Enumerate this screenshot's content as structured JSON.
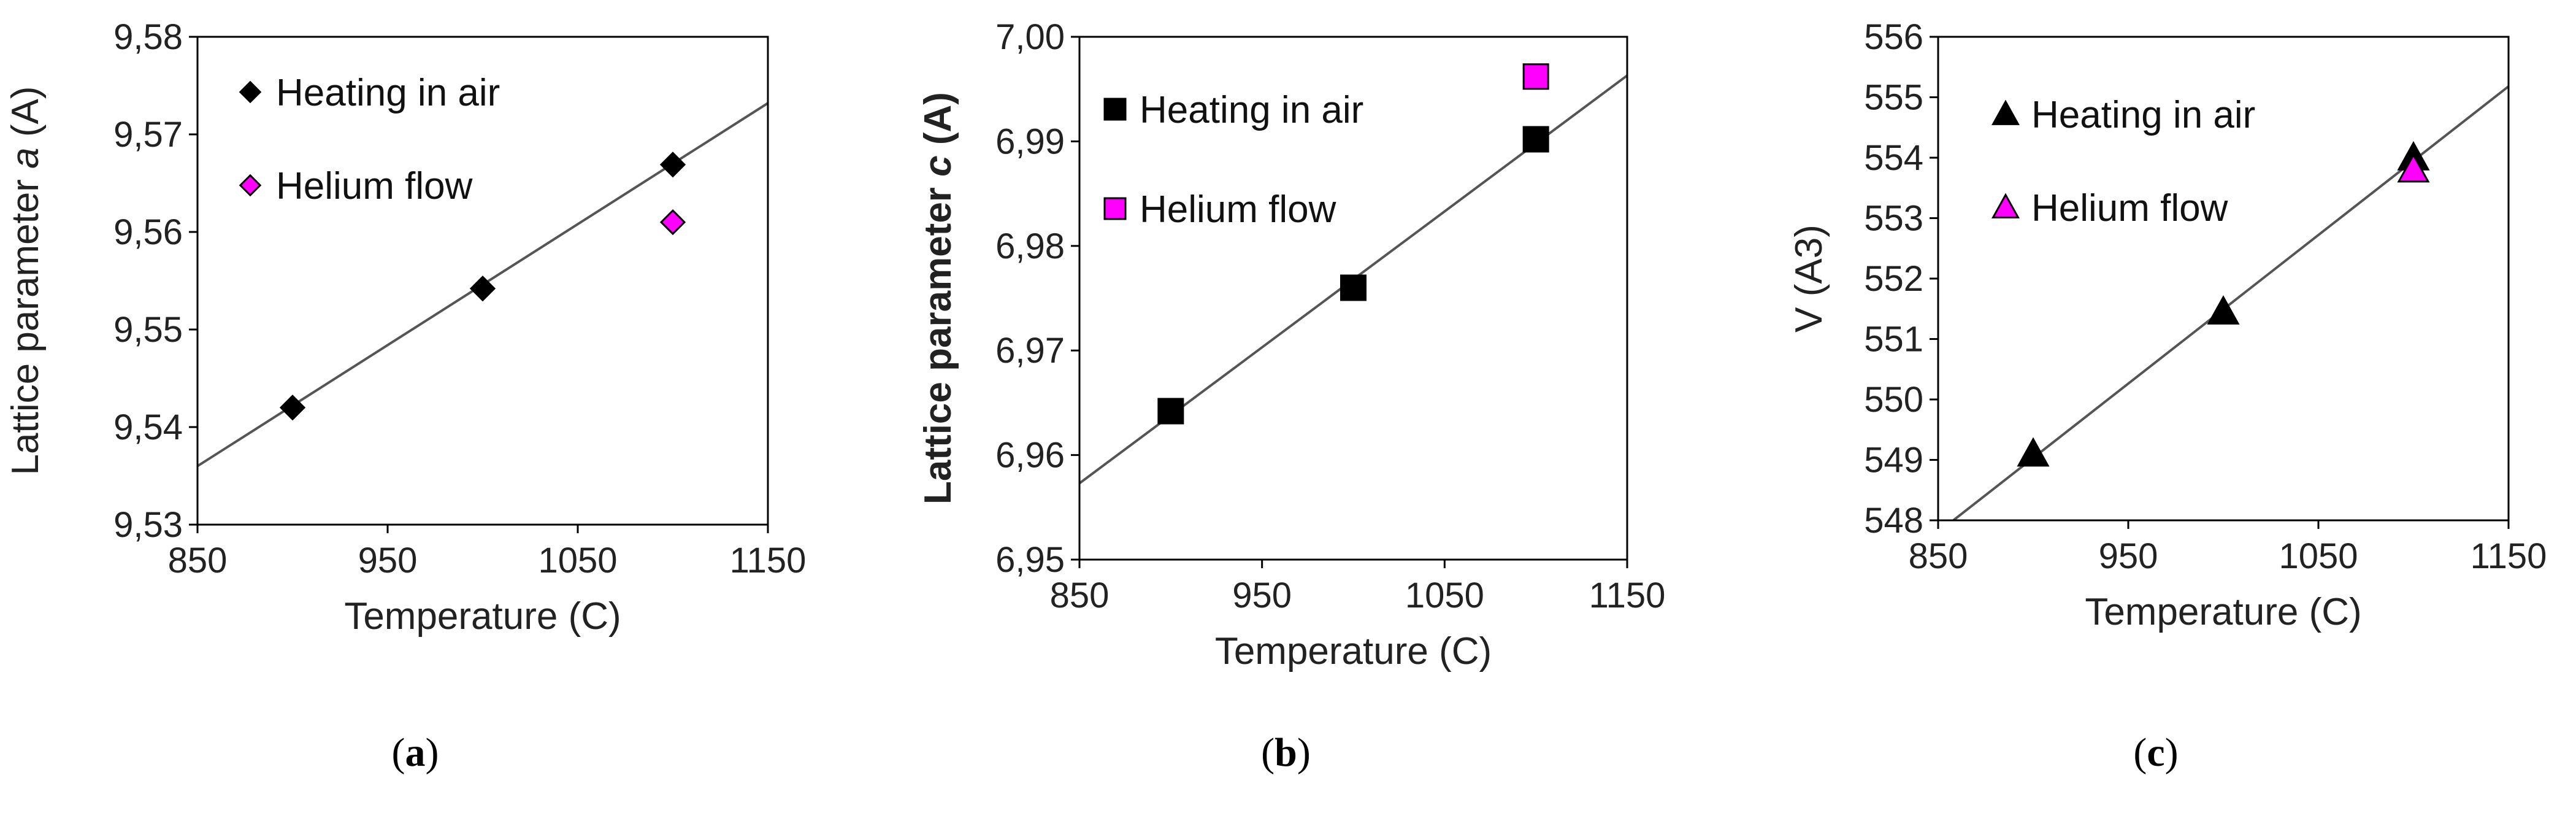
{
  "colors": {
    "air": "#000000",
    "helium": "#ff00ff",
    "fit_line": "#555555",
    "axis": "#000000"
  },
  "chart_data": [
    {
      "type": "scatter",
      "panel_label": {
        "open": "(",
        "letter": "a",
        "close": ")"
      },
      "xlabel": "Temperature (C)",
      "ylabel_parts": [
        "Lattice parameter ",
        "a",
        " (A)"
      ],
      "ylabel_italic_index": 1,
      "ylabel_bold": false,
      "xlim": [
        850,
        1150
      ],
      "ylim": [
        9.53,
        9.58
      ],
      "xticks": [
        850,
        950,
        1050,
        1150
      ],
      "xtick_labels": [
        "850",
        "950",
        "1050",
        "1150"
      ],
      "yticks": [
        9.53,
        9.54,
        9.55,
        9.56,
        9.57,
        9.58
      ],
      "ytick_labels": [
        "9,53",
        "9,54",
        "9,55",
        "9,56",
        "9,57",
        "9,58"
      ],
      "marker": "diamond",
      "legend_placement": "top-left",
      "series": [
        {
          "name": "Heating in air",
          "color": "#000000",
          "x": [
            900,
            1000,
            1100
          ],
          "y": [
            9.542,
            9.5542,
            9.5669
          ]
        },
        {
          "name": "Helium flow",
          "color": "#ff00ff",
          "x": [
            1100
          ],
          "y": [
            9.561
          ]
        }
      ],
      "fit_line": {
        "x": [
          850,
          1150
        ],
        "y": [
          9.536,
          9.5732
        ]
      }
    },
    {
      "type": "scatter",
      "panel_label": {
        "open": "(",
        "letter": "b",
        "close": ")"
      },
      "xlabel": "Temperature (C)",
      "ylabel_parts": [
        "Lattice parameter ",
        "c",
        " (A)"
      ],
      "ylabel_italic_index": 1,
      "ylabel_bold": true,
      "xlim": [
        850,
        1150
      ],
      "ylim": [
        6.95,
        7.0
      ],
      "xticks": [
        850,
        950,
        1050,
        1150
      ],
      "xtick_labels": [
        "850",
        "950",
        "1050",
        "1150"
      ],
      "yticks": [
        6.95,
        6.96,
        6.97,
        6.98,
        6.99,
        7.0
      ],
      "ytick_labels": [
        "6,95",
        "6,96",
        "6,97",
        "6,98",
        "6,99",
        "7,00"
      ],
      "marker": "square",
      "legend_placement": "top-left",
      "series": [
        {
          "name": "Heating in air",
          "color": "#000000",
          "x": [
            900,
            1000,
            1100
          ],
          "y": [
            6.9642,
            6.976,
            6.9902
          ]
        },
        {
          "name": "Helium flow",
          "color": "#ff00ff",
          "x": [
            1100
          ],
          "y": [
            6.9962
          ]
        }
      ],
      "fit_line": {
        "x": [
          850,
          1150
        ],
        "y": [
          6.9573,
          6.9963
        ]
      }
    },
    {
      "type": "scatter",
      "panel_label": {
        "open": "(",
        "letter": "c",
        "close": ")"
      },
      "xlabel": "Temperature (C)",
      "ylabel_parts": [
        "V (A3)"
      ],
      "ylabel_italic_index": -1,
      "ylabel_bold": false,
      "xlim": [
        850,
        1150
      ],
      "ylim": [
        548,
        556
      ],
      "xticks": [
        850,
        950,
        1050,
        1150
      ],
      "xtick_labels": [
        "850",
        "950",
        "1050",
        "1150"
      ],
      "yticks": [
        548,
        549,
        550,
        551,
        552,
        553,
        554,
        555,
        556
      ],
      "ytick_labels": [
        "548",
        "549",
        "550",
        "551",
        "552",
        "553",
        "554",
        "555",
        "556"
      ],
      "marker": "triangle",
      "legend_placement": "top-left",
      "series": [
        {
          "name": "Heating in air",
          "color": "#000000",
          "x": [
            900,
            1000,
            1100
          ],
          "y": [
            549.1,
            551.45,
            554.0
          ]
        },
        {
          "name": "Helium flow",
          "color": "#ff00ff",
          "x": [
            1100
          ],
          "y": [
            553.8
          ]
        }
      ],
      "fit_line": {
        "x": [
          858,
          1150
        ],
        "y": [
          548.0,
          555.18
        ]
      }
    }
  ]
}
